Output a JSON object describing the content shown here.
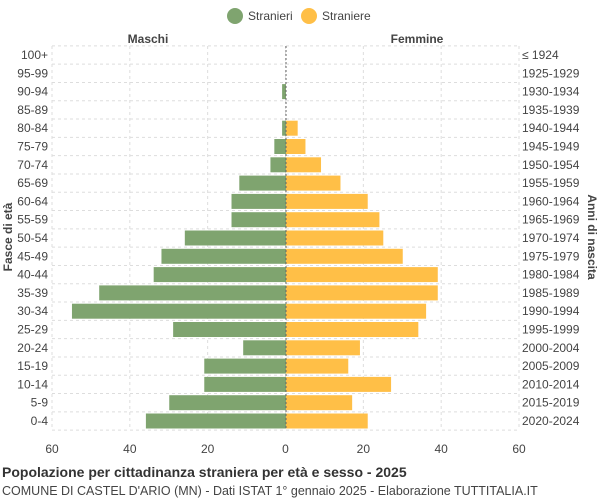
{
  "chart_data": {
    "type": "bar",
    "orientation": "horizontal-pyramid",
    "title": "Popolazione per cittadinanza straniera per età e sesso - 2025",
    "subtitle": "COMUNE DI CASTEL D'ARIO (MN) - Dati ISTAT 1° gennaio 2025 - Elaborazione TUTTITALIA.IT",
    "ylabel_left": "Fasce di età",
    "ylabel_right": "Anni di nascita",
    "left_header": "Maschi",
    "right_header": "Femmine",
    "xlim": [
      -60,
      60
    ],
    "xticks": [
      "60",
      "40",
      "20",
      "0",
      "20",
      "40",
      "60"
    ],
    "grid": true,
    "legend_placement": "top",
    "categories": [
      "100+",
      "95-99",
      "90-94",
      "85-89",
      "80-84",
      "75-79",
      "70-74",
      "65-69",
      "60-64",
      "55-59",
      "50-54",
      "45-49",
      "40-44",
      "35-39",
      "30-34",
      "25-29",
      "20-24",
      "15-19",
      "10-14",
      "5-9",
      "0-4"
    ],
    "birth_years": [
      "≤ 1924",
      "1925-1929",
      "1930-1934",
      "1935-1939",
      "1940-1944",
      "1945-1949",
      "1950-1954",
      "1955-1959",
      "1960-1964",
      "1965-1969",
      "1970-1974",
      "1975-1979",
      "1980-1984",
      "1985-1989",
      "1990-1994",
      "1995-1999",
      "2000-2004",
      "2005-2009",
      "2010-2014",
      "2015-2019",
      "2020-2024"
    ],
    "series": [
      {
        "name": "Stranieri",
        "color": "#7fa46f",
        "values": [
          0,
          0,
          1,
          0,
          1,
          3,
          4,
          12,
          14,
          14,
          26,
          32,
          34,
          48,
          55,
          29,
          11,
          21,
          21,
          30,
          36
        ]
      },
      {
        "name": "Straniere",
        "color": "#ffbf47",
        "values": [
          0,
          0,
          0,
          0,
          3,
          5,
          9,
          14,
          21,
          24,
          25,
          30,
          39,
          39,
          36,
          34,
          19,
          16,
          27,
          17,
          21
        ]
      }
    ]
  }
}
